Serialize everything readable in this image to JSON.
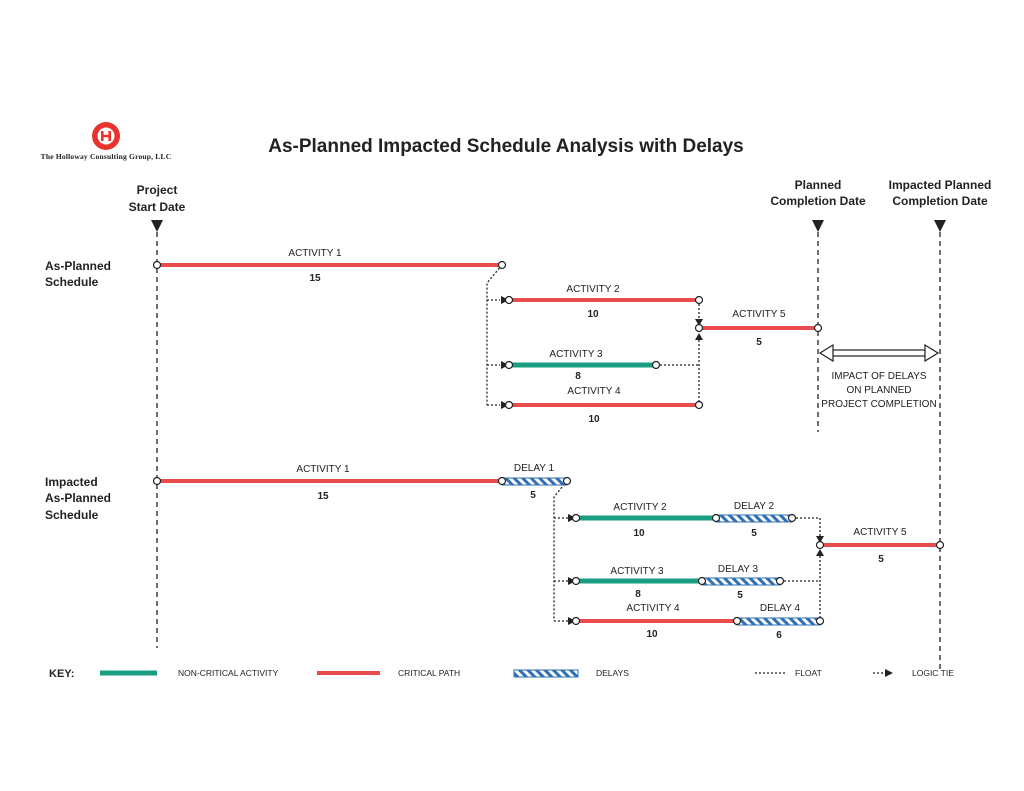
{
  "title": "As-Planned Impacted Schedule Analysis with Delays",
  "logo": {
    "company": "The Holloway Consulting Group, LLC"
  },
  "milestones": {
    "project_start": [
      "Project",
      "Start Date"
    ],
    "planned_completion": [
      "Planned",
      "Completion Date"
    ],
    "impacted_completion": [
      "Impacted Planned",
      "Completion Date"
    ]
  },
  "sections": {
    "as_planned": [
      "As-Planned",
      "Schedule"
    ],
    "impacted": [
      "Impacted",
      "As-Planned",
      "Schedule"
    ]
  },
  "as_planned": [
    {
      "label": "ACTIVITY 1",
      "duration": "15",
      "type": "critical"
    },
    {
      "label": "ACTIVITY 2",
      "duration": "10",
      "type": "critical"
    },
    {
      "label": "ACTIVITY 3",
      "duration": "8",
      "type": "non-critical"
    },
    {
      "label": "ACTIVITY 4",
      "duration": "10",
      "type": "critical"
    },
    {
      "label": "ACTIVITY 5",
      "duration": "5",
      "type": "critical"
    }
  ],
  "impacted": [
    {
      "label": "ACTIVITY 1",
      "duration": "15",
      "type": "critical"
    },
    {
      "label": "DELAY 1",
      "duration": "5",
      "type": "delay"
    },
    {
      "label": "ACTIVITY 2",
      "duration": "10",
      "type": "non-critical"
    },
    {
      "label": "DELAY 2",
      "duration": "5",
      "type": "delay"
    },
    {
      "label": "ACTIVITY 3",
      "duration": "8",
      "type": "non-critical"
    },
    {
      "label": "DELAY 3",
      "duration": "5",
      "type": "delay"
    },
    {
      "label": "ACTIVITY 4",
      "duration": "10",
      "type": "critical"
    },
    {
      "label": "DELAY 4",
      "duration": "6",
      "type": "delay"
    },
    {
      "label": "ACTIVITY 5",
      "duration": "5",
      "type": "critical"
    }
  ],
  "impact_note": [
    "IMPACT OF  DELAYS",
    "ON PLANNED",
    "PROJECT COMPLETION"
  ],
  "key": {
    "heading": "KEY:",
    "non_critical": "NON-CRITICAL ACTIVITY",
    "critical": "CRITICAL PATH",
    "delays": "DELAYS",
    "float": "FLOAT",
    "logic_tie": "LOGIC TIE"
  },
  "colors": {
    "critical": "#e84c4c",
    "non_critical": "#1a9e82",
    "delay": "#2f6fb3",
    "logo": "#e8332e",
    "line": "#222222"
  }
}
